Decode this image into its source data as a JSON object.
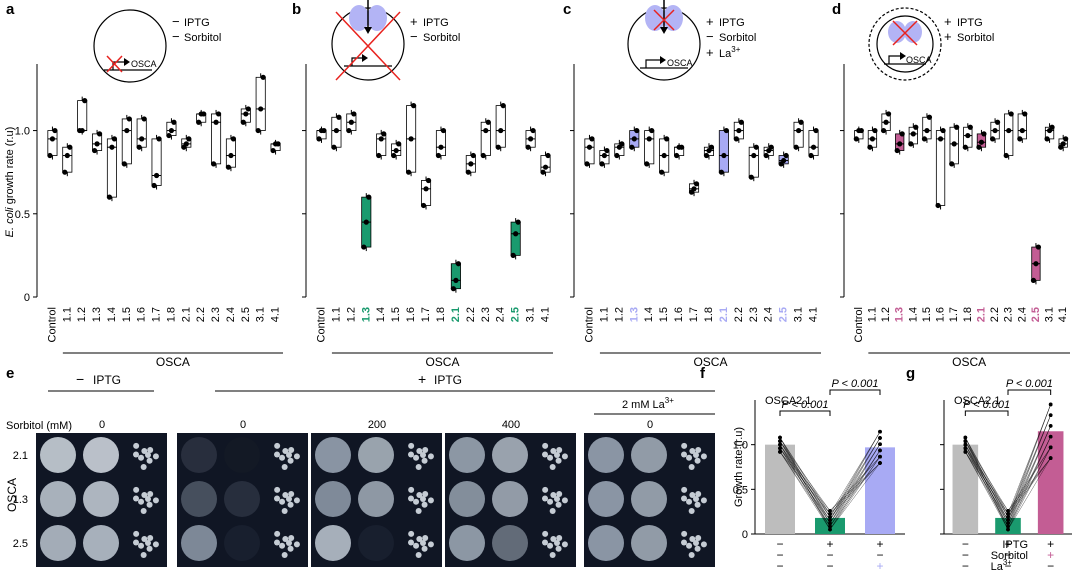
{
  "panel_labels": [
    "a",
    "b",
    "c",
    "d",
    "e",
    "f",
    "g"
  ],
  "colors": {
    "green": "#1a9a6e",
    "blue": "#a8aaf4",
    "pink": "#c35d94",
    "gray": "#bdbdbd",
    "plate_bg": "#101624",
    "purple": "#8a8bea"
  },
  "chart_data": [
    {
      "type": "box",
      "panel": "a",
      "ylabel_italic": "E. coli",
      "ylabel_rest": " growth rate (r.u)",
      "xgroup_label": "OSCA",
      "ylim": [
        0,
        1.4
      ],
      "yticks": [
        "0",
        "0.5",
        "1.0"
      ],
      "categories": [
        "Control",
        "1.1",
        "1.2",
        "1.3",
        "1.4",
        "1.5",
        "1.6",
        "1.7",
        "1.8",
        "2.1",
        "2.2",
        "2.3",
        "2.4",
        "2.5",
        "3.1",
        "4.1"
      ],
      "highlight": [],
      "highlight_color": "",
      "legend": [
        "IPTG",
        "Sorbitol"
      ],
      "legend_signs": [
        "−",
        "−"
      ],
      "inset_label": "OSCA",
      "values": [
        [
          0.85,
          0.95,
          1.0
        ],
        [
          0.75,
          0.85,
          0.9
        ],
        [
          1.0,
          1.0,
          1.18
        ],
        [
          0.88,
          0.92,
          0.98
        ],
        [
          0.6,
          0.9,
          0.95
        ],
        [
          0.8,
          1.0,
          1.07
        ],
        [
          0.9,
          0.95,
          1.07
        ],
        [
          0.67,
          0.73,
          0.95
        ],
        [
          0.97,
          1.0,
          1.05
        ],
        [
          0.9,
          0.92,
          0.95
        ],
        [
          1.05,
          1.1,
          1.1
        ],
        [
          0.8,
          1.05,
          1.1
        ],
        [
          0.78,
          0.85,
          0.95
        ],
        [
          1.05,
          1.1,
          1.13
        ],
        [
          1.0,
          1.13,
          1.32
        ],
        [
          0.88,
          0.92,
          0.92
        ]
      ]
    },
    {
      "type": "box",
      "panel": "b",
      "ylim": [
        0,
        1.4
      ],
      "xgroup_label": "OSCA",
      "categories": [
        "Control",
        "1.1",
        "1.2",
        "1.3",
        "1.4",
        "1.5",
        "1.6",
        "1.7",
        "1.8",
        "2.1",
        "2.2",
        "2.3",
        "2.4",
        "2.5",
        "3.1",
        "4.1"
      ],
      "highlight": [
        "1.3",
        "2.1",
        "2.5"
      ],
      "highlight_color": "green",
      "legend": [
        "IPTG",
        "Sorbitol"
      ],
      "legend_signs": [
        "+",
        "−"
      ],
      "values": [
        [
          0.95,
          1.0,
          1.0
        ],
        [
          0.9,
          1.0,
          1.08
        ],
        [
          1.0,
          1.05,
          1.1
        ],
        [
          0.3,
          0.45,
          0.6
        ],
        [
          0.85,
          0.95,
          0.98
        ],
        [
          0.85,
          0.88,
          0.92
        ],
        [
          0.75,
          0.95,
          1.15
        ],
        [
          0.55,
          0.65,
          0.7
        ],
        [
          0.85,
          0.9,
          1.0
        ],
        [
          0.05,
          0.1,
          0.2
        ],
        [
          0.75,
          0.8,
          0.85
        ],
        [
          0.85,
          1.0,
          1.05
        ],
        [
          0.9,
          1.0,
          1.15
        ],
        [
          0.25,
          0.38,
          0.45
        ],
        [
          0.9,
          0.95,
          1.0
        ],
        [
          0.75,
          0.78,
          0.85
        ]
      ]
    },
    {
      "type": "box",
      "panel": "c",
      "ylim": [
        0,
        1.4
      ],
      "xgroup_label": "OSCA",
      "categories": [
        "Control",
        "1.1",
        "1.2",
        "1.3",
        "1.4",
        "1.5",
        "1.6",
        "1.7",
        "1.8",
        "2.1",
        "2.2",
        "2.3",
        "2.4",
        "2.5",
        "3.1",
        "4.1"
      ],
      "highlight": [
        "1.3",
        "2.1",
        "2.5"
      ],
      "highlight_color": "blue",
      "legend": [
        "IPTG",
        "Sorbitol",
        "La"
      ],
      "legend_signs": [
        "+",
        "−",
        "+"
      ],
      "la_superscript": "3+",
      "values": [
        [
          0.8,
          0.9,
          0.95
        ],
        [
          0.8,
          0.85,
          0.88
        ],
        [
          0.85,
          0.9,
          0.92
        ],
        [
          0.9,
          0.95,
          1.0
        ],
        [
          0.8,
          0.95,
          1.0
        ],
        [
          0.75,
          0.85,
          0.95
        ],
        [
          0.85,
          0.9,
          0.9
        ],
        [
          0.63,
          0.65,
          0.68
        ],
        [
          0.85,
          0.88,
          0.9
        ],
        [
          0.75,
          0.85,
          1.0
        ],
        [
          0.95,
          1.0,
          1.05
        ],
        [
          0.72,
          0.85,
          0.9
        ],
        [
          0.85,
          0.88,
          0.9
        ],
        [
          0.8,
          0.82,
          0.85
        ],
        [
          0.9,
          1.0,
          1.05
        ],
        [
          0.85,
          0.9,
          1.0
        ]
      ]
    },
    {
      "type": "box",
      "panel": "d",
      "ylim": [
        0,
        1.4
      ],
      "xgroup_label": "OSCA",
      "categories": [
        "Control",
        "1.1",
        "1.2",
        "1.3",
        "1.4",
        "1.5",
        "1.6",
        "1.7",
        "1.8",
        "2.1",
        "2.2",
        "2.3",
        "2.4",
        "2.5",
        "3.1",
        "4.1"
      ],
      "highlight": [
        "1.3",
        "2.1",
        "2.5"
      ],
      "highlight_color": "pink",
      "legend": [
        "IPTG",
        "Sorbitol"
      ],
      "legend_signs": [
        "+",
        "+"
      ],
      "values": [
        [
          0.95,
          1.0,
          1.0
        ],
        [
          0.9,
          0.95,
          1.0
        ],
        [
          1.0,
          1.05,
          1.1
        ],
        [
          0.88,
          0.92,
          0.98
        ],
        [
          0.92,
          0.98,
          1.02
        ],
        [
          0.95,
          1.0,
          1.08
        ],
        [
          0.55,
          0.95,
          1.0
        ],
        [
          0.8,
          0.92,
          1.02
        ],
        [
          0.9,
          0.97,
          1.02
        ],
        [
          0.9,
          0.93,
          0.98
        ],
        [
          0.95,
          1.0,
          1.05
        ],
        [
          0.85,
          1.0,
          1.1
        ],
        [
          0.95,
          1.0,
          1.1
        ],
        [
          0.1,
          0.2,
          0.3
        ],
        [
          0.95,
          1.0,
          1.02
        ],
        [
          0.9,
          0.92,
          0.95
        ]
      ]
    },
    {
      "type": "bar",
      "panel": "f",
      "title": "OSCA2.1",
      "ylabel": "Growth rate (r.u)",
      "ylim": [
        0,
        1.5
      ],
      "yticks": [
        "0",
        "0.5",
        "1.0"
      ],
      "values": [
        1.0,
        0.18,
        0.97
      ],
      "bar_colors": [
        "gray",
        "green",
        "blue"
      ],
      "pvalues": [
        "P < 0.001",
        "P < 0.001"
      ],
      "condition_rows": [
        "IPTG",
        "Sorbitol",
        "La3+"
      ],
      "conditions": [
        [
          "−",
          "+",
          "+"
        ],
        [
          "−",
          "−",
          "−"
        ],
        [
          "−",
          "−",
          "+"
        ]
      ]
    },
    {
      "type": "bar",
      "panel": "g",
      "title": "OSCA2.1",
      "ylim": [
        0,
        1.5
      ],
      "values": [
        1.0,
        0.18,
        1.15
      ],
      "bar_colors": [
        "gray",
        "green",
        "pink"
      ],
      "pvalues": [
        "P < 0.001",
        "P < 0.001"
      ],
      "condition_rows": [
        "IPTG",
        "Sorbitol",
        "La"
      ],
      "la_superscript": "3+",
      "conditions": [
        [
          "−",
          "+",
          "+"
        ],
        [
          "−",
          "−",
          "+"
        ],
        [
          "−",
          "−",
          "−"
        ]
      ]
    }
  ],
  "panel_e": {
    "minus_iptg": "IPTG",
    "minus_sign": "−",
    "plus_iptg": "IPTG",
    "plus_sign": "+",
    "la_label": "2 mM La",
    "la_superscript": "3+",
    "sorbitol_label": "Sorbitol (mM)",
    "plate_values": [
      "0",
      "0",
      "200",
      "400",
      "0"
    ],
    "row_labels": [
      "2.1",
      "1.3",
      "2.5"
    ],
    "side_label": "OSCA"
  }
}
